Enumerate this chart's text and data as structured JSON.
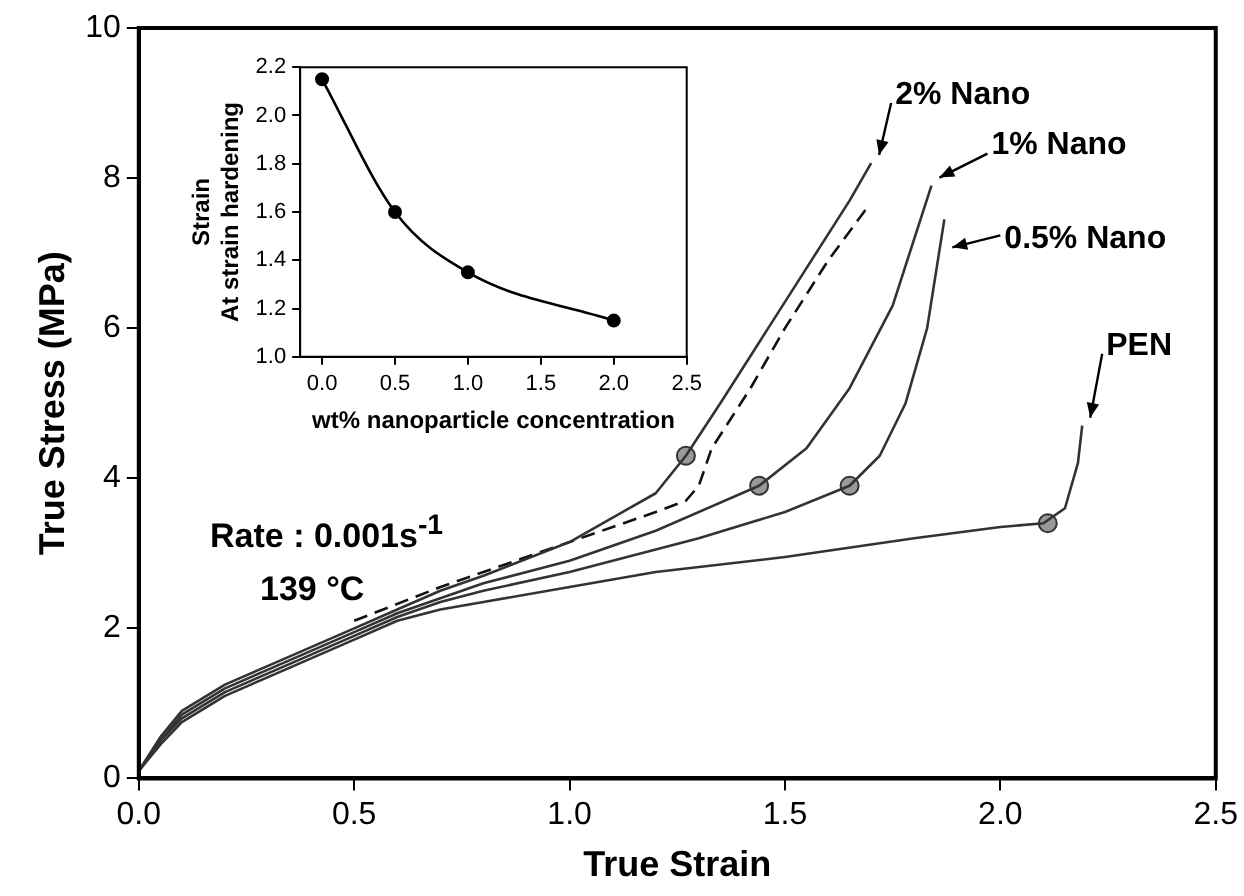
{
  "chart_data": [
    {
      "type": "line",
      "xlabel": "True Strain",
      "ylabel": "True Stress (MPa)",
      "xlim": [
        0,
        2.5
      ],
      "xticks": [
        {
          "value": 0,
          "label": "0.0"
        },
        0.5,
        {
          "value": 1,
          "label": "1.0"
        },
        1.5,
        {
          "value": 2,
          "label": "2.0"
        },
        2.5
      ],
      "ylim": [
        0,
        10
      ],
      "yticks": [
        0,
        2,
        4,
        6,
        8,
        10
      ],
      "grid": false,
      "legend": false,
      "marker": "none",
      "annotations": [
        "Rate : 0.001s$^{-1}$",
        "139 °C"
      ],
      "series": [
        {
          "name": "PEN",
          "color": "#333333",
          "x": [
            0,
            0.05,
            0.1,
            0.2,
            0.3,
            0.4,
            0.5,
            0.6,
            0.7,
            0.8,
            1.0,
            1.2,
            1.5,
            1.8,
            2.0,
            2.1,
            2.15,
            2.18,
            2.19
          ],
          "values": [
            0.1,
            0.45,
            0.75,
            1.1,
            1.35,
            1.6,
            1.85,
            2.1,
            2.25,
            2.35,
            2.55,
            2.75,
            2.95,
            3.2,
            3.35,
            3.4,
            3.6,
            4.2,
            4.7
          ]
        },
        {
          "name": "0.5% Nano",
          "color": "#333333",
          "x": [
            0,
            0.05,
            0.1,
            0.2,
            0.3,
            0.4,
            0.5,
            0.6,
            0.7,
            0.8,
            1.0,
            1.3,
            1.5,
            1.65,
            1.72,
            1.78,
            1.83,
            1.87
          ],
          "values": [
            0.1,
            0.5,
            0.8,
            1.15,
            1.4,
            1.65,
            1.9,
            2.15,
            2.35,
            2.5,
            2.75,
            3.2,
            3.55,
            3.9,
            4.3,
            5.0,
            6.0,
            7.45
          ]
        },
        {
          "name": "1% Nano",
          "color": "#333333",
          "x": [
            0,
            0.05,
            0.1,
            0.2,
            0.3,
            0.4,
            0.5,
            0.6,
            0.7,
            0.8,
            1.0,
            1.2,
            1.44,
            1.55,
            1.65,
            1.75,
            1.84
          ],
          "values": [
            0.1,
            0.5,
            0.85,
            1.2,
            1.45,
            1.7,
            1.95,
            2.2,
            2.4,
            2.6,
            2.9,
            3.3,
            3.9,
            4.4,
            5.2,
            6.3,
            7.9
          ]
        },
        {
          "name": "2% Nano",
          "color": "#333333",
          "x": [
            0,
            0.05,
            0.1,
            0.2,
            0.3,
            0.4,
            0.5,
            0.6,
            0.7,
            0.8,
            1.0,
            1.2,
            1.27,
            1.35,
            1.45,
            1.55,
            1.65,
            1.7
          ],
          "values": [
            0.1,
            0.55,
            0.9,
            1.25,
            1.5,
            1.75,
            2.0,
            2.25,
            2.5,
            2.7,
            3.15,
            3.8,
            4.3,
            5.0,
            5.9,
            6.8,
            7.7,
            8.2
          ]
        },
        {
          "color": "#111111",
          "line_style": "dashed",
          "x": [
            0.5,
            0.7,
            0.9,
            1.1,
            1.2,
            1.27,
            1.3,
            1.33,
            1.42,
            1.5,
            1.6,
            1.69
          ],
          "values": [
            2.1,
            2.55,
            2.95,
            3.35,
            3.55,
            3.7,
            3.9,
            4.4,
            5.2,
            6.0,
            6.9,
            7.6
          ]
        },
        {
          "type": "scatter",
          "color": "#999999",
          "marker": "circle",
          "x": [
            1.27,
            1.44,
            1.65,
            2.11
          ],
          "values": [
            4.3,
            3.9,
            3.9,
            3.4
          ]
        }
      ]
    },
    {
      "type": "line",
      "xlabel": "wt% nanoparticle concentration",
      "ylabel": "Strain\nAt strain hardening",
      "xlim": [
        -0.15,
        2.5
      ],
      "xticks": [
        {
          "value": 0,
          "label": "0.0"
        },
        0.5,
        {
          "value": 1,
          "label": "1.0"
        },
        1.5,
        {
          "value": 2,
          "label": "2.0"
        },
        2.5
      ],
      "ylim": [
        1,
        2.2
      ],
      "yticks": [
        {
          "value": 1,
          "label": "1.0"
        },
        1.2,
        1.4,
        1.6,
        1.8,
        {
          "value": 2,
          "label": "2.0"
        },
        2.2
      ],
      "grid": false,
      "legend": false,
      "marker": "circle",
      "series": [
        {
          "color": "#000000",
          "x": [
            0,
            0.5,
            1,
            2
          ],
          "values": [
            2.15,
            1.6,
            1.35,
            1.15
          ]
        }
      ]
    }
  ]
}
